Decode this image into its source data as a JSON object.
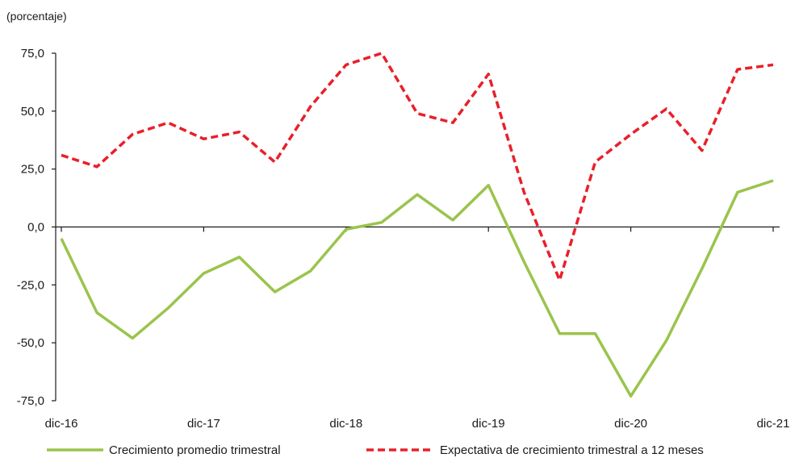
{
  "chart_data": {
    "type": "line",
    "title": "",
    "unit_label": "(porcentaje)",
    "xlabel": "",
    "ylabel": "",
    "ylim": [
      -75,
      75
    ],
    "y_ticks": [
      "75,0",
      "50,0",
      "25,0",
      "0,0",
      "-25,0",
      "-50,0",
      "-75,0"
    ],
    "y_tick_values": [
      75,
      50,
      25,
      0,
      -25,
      -50,
      -75
    ],
    "x_tick_labels": [
      "dic-16",
      "dic-17",
      "dic-18",
      "dic-19",
      "dic-20",
      "dic-21"
    ],
    "x_tick_indices": [
      0,
      4,
      8,
      12,
      16,
      20
    ],
    "x_count": 21,
    "legend_position": "bottom",
    "series": [
      {
        "name": "Crecimiento promedio trimestral",
        "color": "#9ac44c",
        "style": "solid",
        "values": [
          -5,
          -37,
          -48,
          -35,
          -20,
          -13,
          -28,
          -19,
          -1,
          2,
          14,
          3,
          18,
          -15,
          -46,
          -46,
          -73,
          -49,
          -18,
          15,
          20
        ]
      },
      {
        "name": "Expectativa de crecimiento trimestral a 12 meses",
        "color": "#e8202a",
        "style": "dashed",
        "values": [
          31,
          26,
          40,
          45,
          38,
          41,
          28,
          52,
          70,
          75,
          49,
          45,
          66,
          15,
          -23,
          28,
          40,
          51,
          33,
          68,
          70
        ]
      }
    ]
  }
}
